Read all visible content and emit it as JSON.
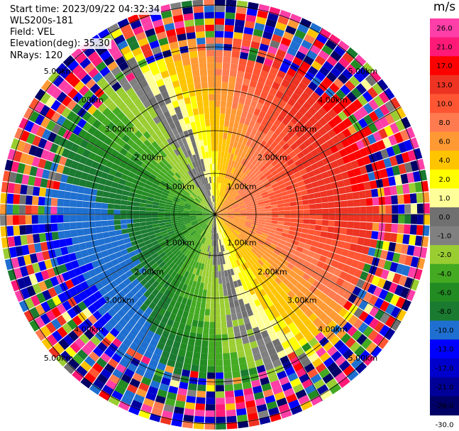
{
  "info": {
    "start_time": "Start time: 2023/09/22 04:32:34",
    "instrument": "WLS200s-181",
    "field": "Field: VEL",
    "elevation": "Elevation(deg): 35.30",
    "nrays": "NRays: 120"
  },
  "colorbar": {
    "title": "m/s",
    "ticks": [
      "26.0",
      "21.0",
      "17.0",
      "13.0",
      "10.0",
      "8.0",
      "6.0",
      "4.0",
      "2.0",
      "1.0",
      "0.0",
      "-1.0",
      "-2.0",
      "-4.0",
      "-6.0",
      "-8.0",
      "-10.0",
      "-13.0",
      "-17.0",
      "-21.0",
      "-26.0",
      "-30.0"
    ],
    "colors": [
      "#ff3fa8",
      "#ff1a78",
      "#ff0000",
      "#ee3322",
      "#ff5533",
      "#ff7b4f",
      "#ff9933",
      "#ffc400",
      "#ffff00",
      "#ffff99",
      "#707070",
      "#808080",
      "#9acd32",
      "#44aa22",
      "#228b22",
      "#1a7a30",
      "#1e6fd0",
      "#0000ff",
      "#0000cc",
      "#000099",
      "#000066"
    ]
  },
  "chart_data": {
    "type": "heatmap",
    "projection": "polar (PPI)",
    "field": "VEL",
    "units": "m/s",
    "nrays": 120,
    "elevation_deg": 35.3,
    "vmin": -30.0,
    "vmax": 26.0,
    "range_ring_labels": [
      "1.00km",
      "2.00km",
      "3.00km",
      "4.00km",
      "5.00km"
    ],
    "pattern": "Radial velocity: positive (orange/red) toward east, negative (green/blue) toward west; noisy high-variance values beyond ~4.5 km"
  }
}
